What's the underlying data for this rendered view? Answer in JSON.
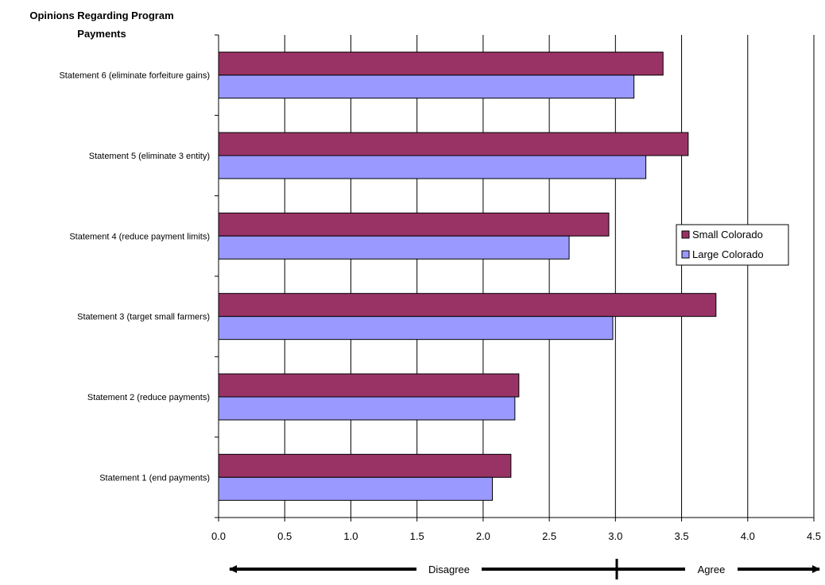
{
  "chart_data": {
    "type": "bar",
    "orientation": "horizontal",
    "title_lines": [
      "Opinions Regarding Program",
      "Payments"
    ],
    "categories": [
      "Statement 1 (end payments)",
      "Statement 2 (reduce payments)",
      "Statement 3 (target small farmers)",
      "Statement 4 (reduce payment limits)",
      "Statement 5 (eliminate 3 entity)",
      "Statement 6 (eliminate forfeiture gains)"
    ],
    "series": [
      {
        "name": "Small Colorado",
        "color": "#993366",
        "values": [
          2.21,
          2.27,
          3.76,
          2.95,
          3.55,
          3.36
        ]
      },
      {
        "name": "Large Colorado",
        "color": "#9999ff",
        "values": [
          2.07,
          2.24,
          2.98,
          2.65,
          3.23,
          3.14
        ]
      }
    ],
    "xlim": [
      0,
      4.5
    ],
    "x_ticks": [
      "0.0",
      "0.5",
      "1.0",
      "1.5",
      "2.0",
      "2.5",
      "3.0",
      "3.5",
      "4.0",
      "4.5"
    ],
    "gridlines": "vertical",
    "legend_position": "right",
    "scale_annotation": {
      "left_label": "Disagree",
      "right_label": "Agree",
      "divider_value": 3.0
    }
  }
}
